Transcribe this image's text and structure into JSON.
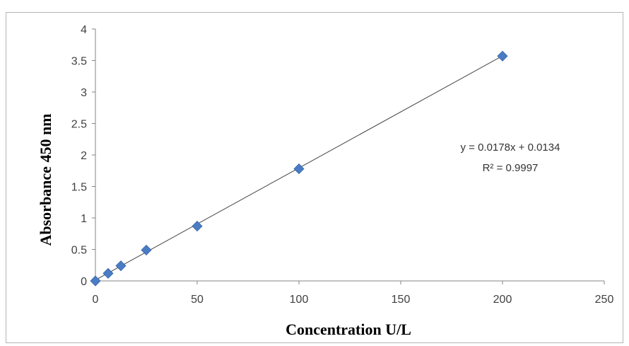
{
  "chart_data": {
    "type": "scatter",
    "title": "",
    "xlabel": "Concentration U/L",
    "ylabel": "Absorbance 450 nm",
    "xlim": [
      0,
      250
    ],
    "ylim": [
      0,
      4
    ],
    "x_ticks": [
      "0",
      "50",
      "100",
      "150",
      "200",
      "250"
    ],
    "y_ticks": [
      "0",
      "0.5",
      "1",
      "1.5",
      "2",
      "2.5",
      "3",
      "3.5",
      "4"
    ],
    "grid": false,
    "legend": "none",
    "series": [
      {
        "x": [
          0,
          6.25,
          12.5,
          25,
          50,
          100,
          200
        ],
        "y": [
          0.0,
          0.12,
          0.24,
          0.49,
          0.87,
          1.78,
          3.57
        ],
        "marker": "diamond",
        "color": "#4a7cc4"
      }
    ],
    "trendline": {
      "type": "linear",
      "slope": 0.0178,
      "intercept": 0.0134,
      "x_range": [
        0,
        200
      ],
      "color": "#444444"
    },
    "annotations": [
      "y = 0.0178x + 0.0134",
      "R² = 0.9997"
    ]
  }
}
